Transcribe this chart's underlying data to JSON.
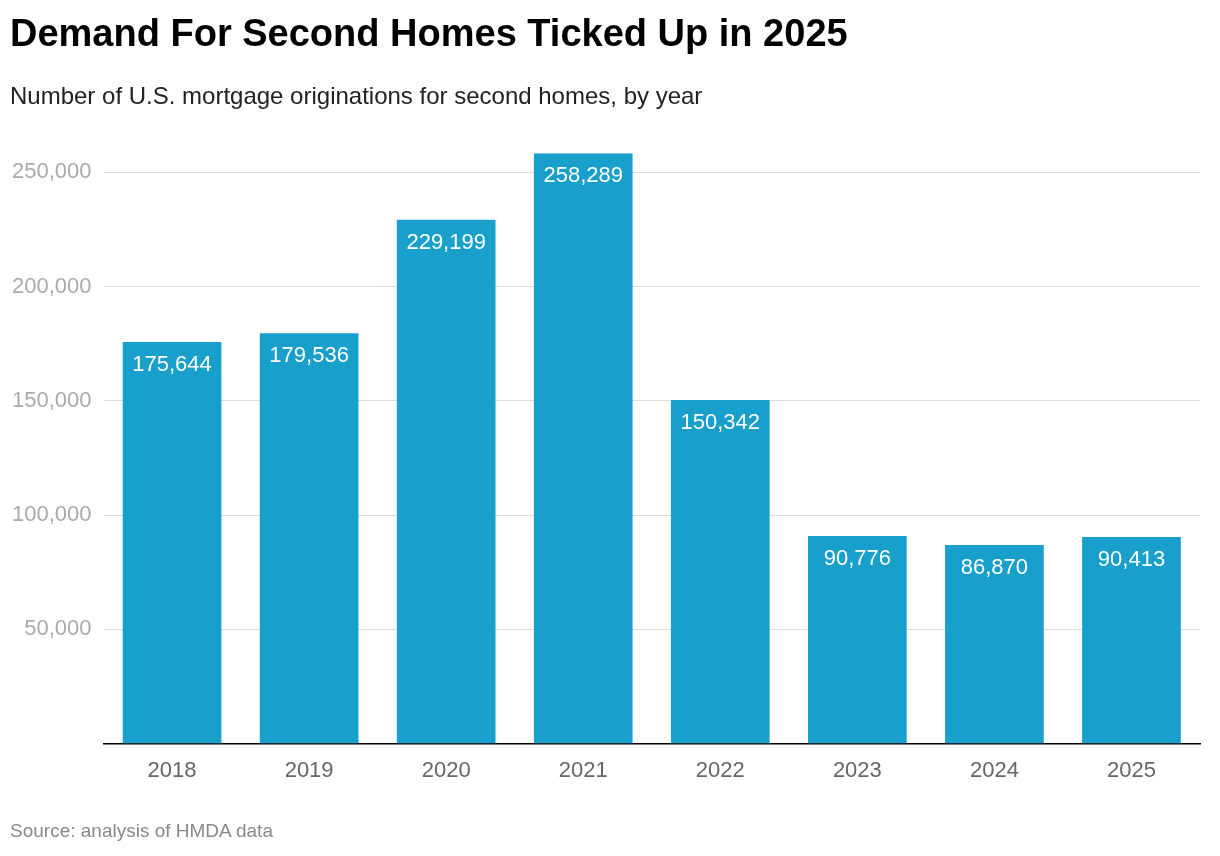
{
  "chart_data": {
    "type": "bar",
    "title": "Demand For Second Homes Ticked Up in 2025",
    "subtitle": "Number of U.S. mortgage originations for second homes, by year",
    "categories": [
      "2018",
      "2019",
      "2020",
      "2021",
      "2022",
      "2023",
      "2024",
      "2025"
    ],
    "values": [
      175644,
      179536,
      229199,
      258289,
      150342,
      90776,
      86870,
      90413
    ],
    "value_labels": [
      "175,644",
      "179,536",
      "229,199",
      "258,289",
      "150,342",
      "90,776",
      "86,870",
      "90,413"
    ],
    "color": "#189fcc",
    "ylim": [
      0,
      258289
    ],
    "yticks": [
      {
        "value": 50000,
        "label": "50,000"
      },
      {
        "value": 100000,
        "label": "100,000"
      },
      {
        "value": 150000,
        "label": "150,000"
      },
      {
        "value": 200000,
        "label": "200,000"
      },
      {
        "value": 250000,
        "label": "250,000"
      }
    ],
    "grid": "y",
    "legend": false,
    "annotations": [
      "Source: analysis of HMDA data"
    ]
  }
}
